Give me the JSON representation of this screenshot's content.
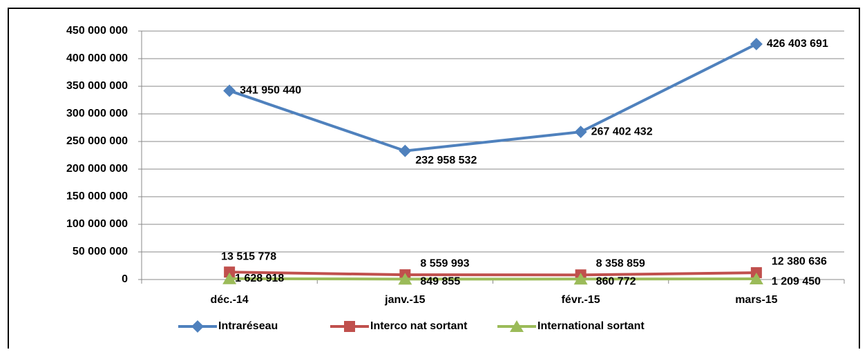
{
  "chart_data": {
    "type": "line",
    "categories": [
      "déc.-14",
      "janv.-15",
      "févr.-15",
      "mars-15"
    ],
    "series": [
      {
        "name": "Intraréseau",
        "color": "#4f81bd",
        "marker": "diamond",
        "values": [
          341950440,
          232958532,
          267402432,
          426403691
        ],
        "value_labels": [
          "341 950 440",
          "232 958 532",
          "267 402 432",
          "426 403 691"
        ]
      },
      {
        "name": "Interco nat sortant",
        "color": "#c0504d",
        "marker": "square",
        "values": [
          13515778,
          8559993,
          8358859,
          12380636
        ],
        "value_labels": [
          "13 515 778",
          "8 559 993",
          "8 358 859",
          "12 380 636"
        ]
      },
      {
        "name": "International sortant",
        "color": "#9bbb59",
        "marker": "triangle",
        "values": [
          1628918,
          849855,
          860772,
          1209450
        ],
        "value_labels": [
          "1 628 918",
          "849 855",
          "860 772",
          "1 209 450"
        ]
      }
    ],
    "ylim": [
      0,
      450000000
    ],
    "yticks": [
      0,
      {
        "value": 50000000,
        "label": "50 000 000"
      },
      {
        "value": 100000000,
        "label": "100 000 000"
      },
      {
        "value": 150000000,
        "label": "150 000 000"
      },
      {
        "value": 200000000,
        "label": "200 000 000"
      },
      {
        "value": 250000000,
        "label": "250 000 000"
      },
      {
        "value": 300000000,
        "label": "300 000 000"
      },
      {
        "value": 350000000,
        "label": "350 000 000"
      },
      {
        "value": 400000000,
        "label": "400 000 000"
      },
      {
        "value": 450000000,
        "label": "450 000 000"
      }
    ],
    "grid": true,
    "legend": "bottom"
  }
}
